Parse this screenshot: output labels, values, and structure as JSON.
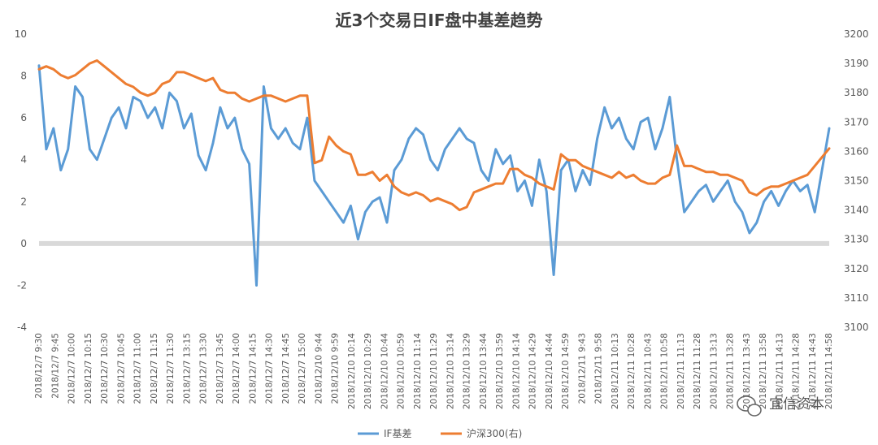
{
  "chart_data": {
    "type": "line",
    "title": "近3个交易日IF盘中基差趋势",
    "left_axis": {
      "min": -4,
      "max": 10,
      "ticks": [
        -4,
        -2,
        0,
        2,
        4,
        6,
        8,
        10
      ]
    },
    "right_axis": {
      "min": 3100,
      "max": 3200,
      "ticks": [
        3100,
        3110,
        3120,
        3130,
        3140,
        3150,
        3160,
        3170,
        3180,
        3190,
        3200
      ]
    },
    "x_tick_labels": [
      "2018/12/7 9:30",
      "2018/12/7 9:45",
      "2018/12/7 10:00",
      "2018/12/7 10:15",
      "2018/12/7 10:30",
      "2018/12/7 10:45",
      "2018/12/7 11:00",
      "2018/12/7 11:15",
      "2018/12/7 11:30",
      "2018/12/7 13:15",
      "2018/12/7 13:30",
      "2018/12/7 13:45",
      "2018/12/7 14:00",
      "2018/12/7 14:15",
      "2018/12/7 14:30",
      "2018/12/7 14:45",
      "2018/12/7 15:00",
      "2018/12/10 9:44",
      "2018/12/10 9:59",
      "2018/12/10 10:14",
      "2018/12/10 10:29",
      "2018/12/10 10:44",
      "2018/12/10 10:59",
      "2018/12/10 11:14",
      "2018/12/10 11:29",
      "2018/12/10 13:14",
      "2018/12/10 13:29",
      "2018/12/10 13:44",
      "2018/12/10 13:59",
      "2018/12/10 14:14",
      "2018/12/10 14:29",
      "2018/12/10 14:44",
      "2018/12/10 14:59",
      "2018/12/11 9:43",
      "2018/12/11 9:58",
      "2018/12/11 10:13",
      "2018/12/11 10:28",
      "2018/12/11 10:43",
      "2018/12/11 10:58",
      "2018/12/11 11:13",
      "2018/12/11 11:28",
      "2018/12/11 13:13",
      "2018/12/11 13:28",
      "2018/12/11 13:43",
      "2018/12/11 13:58",
      "2018/12/11 14:13",
      "2018/12/11 14:28",
      "2018/12/11 14:43",
      "2018/12/11 14:58"
    ],
    "series": [
      {
        "name": "IF基差",
        "axis": "left",
        "color": "#5B9BD5",
        "values": [
          8.5,
          4.5,
          5.5,
          3.5,
          4.5,
          7.5,
          7.0,
          4.5,
          4.0,
          5.0,
          6.0,
          6.5,
          5.5,
          7.0,
          6.8,
          6.0,
          6.5,
          5.5,
          7.2,
          6.8,
          5.5,
          6.2,
          4.2,
          3.5,
          4.8,
          6.5,
          5.5,
          6.0,
          4.5,
          3.8,
          -2.0,
          7.5,
          5.5,
          5.0,
          5.5,
          4.8,
          4.5,
          6.0,
          3.0,
          2.5,
          2.0,
          1.5,
          1.0,
          1.8,
          0.2,
          1.5,
          2.0,
          2.2,
          1.0,
          3.5,
          4.0,
          5.0,
          5.5,
          5.2,
          4.0,
          3.5,
          4.5,
          5.0,
          5.5,
          5.0,
          4.8,
          3.5,
          3.0,
          4.5,
          3.8,
          4.2,
          2.5,
          3.0,
          1.8,
          4.0,
          2.5,
          -1.5,
          3.5,
          4.0,
          2.5,
          3.5,
          2.8,
          5.0,
          6.5,
          5.5,
          6.0,
          5.0,
          4.5,
          5.8,
          6.0,
          4.5,
          5.5,
          7.0,
          4.0,
          1.5,
          2.0,
          2.5,
          2.8,
          2.0,
          2.5,
          3.0,
          2.0,
          1.5,
          0.5,
          1.0,
          2.0,
          2.5,
          1.8,
          2.5,
          3.0,
          2.5,
          2.8,
          1.5,
          3.5,
          5.5
        ],
        "note": ""
      },
      {
        "name": "沪深300(右)",
        "axis": "right",
        "color": "#ED7D31",
        "values": [
          3188,
          3189,
          3188,
          3186,
          3185,
          3186,
          3188,
          3190,
          3191,
          3189,
          3187,
          3185,
          3183,
          3182,
          3180,
          3179,
          3180,
          3183,
          3184,
          3187,
          3187,
          3186,
          3185,
          3184,
          3185,
          3181,
          3180,
          3180,
          3178,
          3177,
          3178,
          3179,
          3179,
          3178,
          3177,
          3178,
          3179,
          3179,
          3156,
          3157,
          3165,
          3162,
          3160,
          3159,
          3152,
          3152,
          3153,
          3150,
          3152,
          3148,
          3146,
          3145,
          3146,
          3145,
          3143,
          3144,
          3143,
          3142,
          3140,
          3141,
          3146,
          3147,
          3148,
          3149,
          3149,
          3154,
          3154,
          3152,
          3151,
          3149,
          3148,
          3147,
          3159,
          3157,
          3157,
          3155,
          3154,
          3153,
          3152,
          3151,
          3153,
          3151,
          3152,
          3150,
          3149,
          3149,
          3151,
          3152,
          3162,
          3155,
          3155,
          3154,
          3153,
          3153,
          3152,
          3152,
          3151,
          3150,
          3146,
          3145,
          3147,
          3148,
          3148,
          3149,
          3150,
          3151,
          3152,
          3155,
          3158,
          3161
        ]
      }
    ],
    "legend": {
      "position": "bottom",
      "items": [
        "IF基差",
        "沪深300(右)"
      ]
    },
    "zero_band": true
  },
  "watermark": "宜信资本"
}
